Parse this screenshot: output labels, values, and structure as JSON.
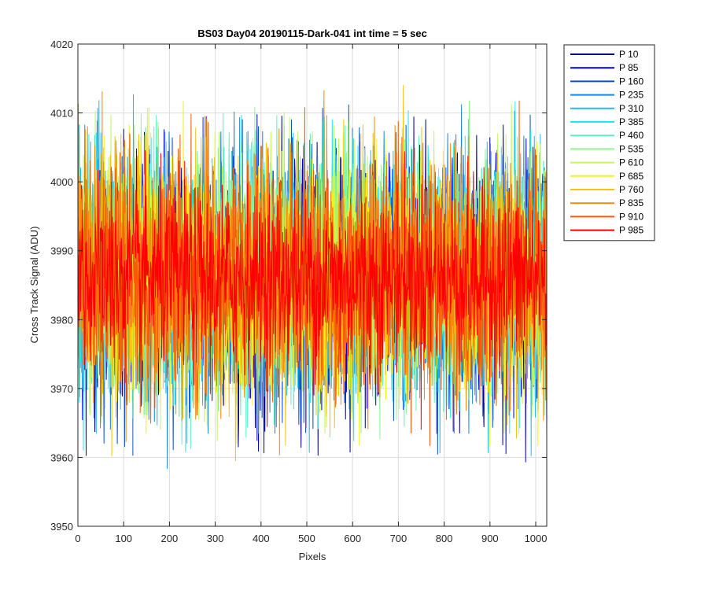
{
  "chart_data": {
    "type": "line",
    "title": "BS03 Day04 20190115-Dark-041 int time = 5 sec",
    "xlabel": "Pixels",
    "ylabel": "Cross Track Signal (ADU)",
    "xlim": [
      0,
      1024
    ],
    "ylim": [
      3950,
      4020
    ],
    "xticks": [
      0,
      100,
      200,
      300,
      400,
      500,
      600,
      700,
      800,
      900,
      1000
    ],
    "yticks": [
      3950,
      3960,
      3970,
      3980,
      3990,
      4000,
      4010,
      4020
    ],
    "grid": true,
    "legend_placement": "outside-top-right",
    "x_count": 1024,
    "series": [
      {
        "name": "P 10",
        "color": "#00008f",
        "mean": 3986,
        "spread": 8.5,
        "min": 3960,
        "max": 4010
      },
      {
        "name": "P 85",
        "color": "#0000d0",
        "mean": 3986,
        "spread": 8.5,
        "min": 3959,
        "max": 4020
      },
      {
        "name": "P 160",
        "color": "#0a4fd6",
        "mean": 3986,
        "spread": 8.5,
        "min": 3959,
        "max": 4016
      },
      {
        "name": "P 235",
        "color": "#1a86e0",
        "mean": 3986,
        "spread": 8.5,
        "min": 3958,
        "max": 4012
      },
      {
        "name": "P 310",
        "color": "#1fbaf0",
        "mean": 3986,
        "spread": 8.5,
        "min": 3960,
        "max": 4014
      },
      {
        "name": "P 385",
        "color": "#24e8f0",
        "mean": 3986,
        "spread": 8.5,
        "min": 3960,
        "max": 4012
      },
      {
        "name": "P 460",
        "color": "#5cf2c8",
        "mean": 3986,
        "spread": 8.5,
        "min": 3961,
        "max": 4011
      },
      {
        "name": "P 535",
        "color": "#8ff58d",
        "mean": 3986,
        "spread": 8.5,
        "min": 3961,
        "max": 4019
      },
      {
        "name": "P 610",
        "color": "#c4f55a",
        "mean": 3986,
        "spread": 8.5,
        "min": 3962,
        "max": 4015
      },
      {
        "name": "P 685",
        "color": "#f2f21a",
        "mean": 3986,
        "spread": 8.5,
        "min": 3961,
        "max": 4013
      },
      {
        "name": "P 760",
        "color": "#f5c20d",
        "mean": 3986,
        "spread": 8.5,
        "min": 3958,
        "max": 4020
      },
      {
        "name": "P 835",
        "color": "#f58a0a",
        "mean": 3986,
        "spread": 8.5,
        "min": 3960,
        "max": 4015
      },
      {
        "name": "P 910",
        "color": "#f55a0a",
        "mean": 3986,
        "spread": 8.5,
        "min": 3960,
        "max": 4017
      },
      {
        "name": "P 985",
        "color": "#ff0000",
        "mean": 3986,
        "spread": 6.5,
        "min": 3959,
        "max": 4012
      }
    ]
  }
}
